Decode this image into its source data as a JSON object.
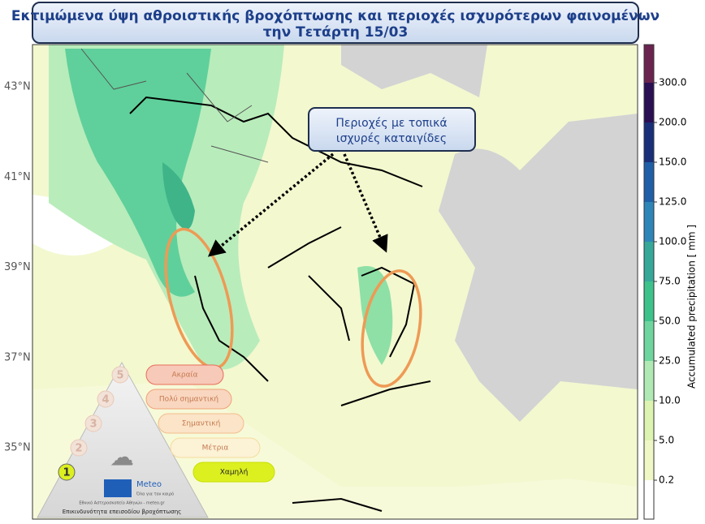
{
  "header": {
    "title": [
      "Εκτιμώμενα ύψη αθροιστικής βροχόπτωσης και περιοχές ισχυρότερων φαινομένων",
      "την Τετάρτη 15/03"
    ]
  },
  "callout": {
    "lines": [
      "Περιοχές με τοπικά",
      "ισχυρές καταιγίδες"
    ]
  },
  "latitude_labels": [
    "43°N",
    "41°N",
    "39°N",
    "37°N",
    "35°N"
  ],
  "colorbar": {
    "label": "Accumulated precipitation [ mm ]",
    "ticks": [
      "0.2",
      "5.0",
      "10.0",
      "25.0",
      "50.0",
      "75.0",
      "100.0",
      "125.0",
      "150.0",
      "200.0",
      "300.0"
    ]
  },
  "risk_legend": {
    "levels": [
      {
        "number": "5",
        "label": "Ακραία"
      },
      {
        "number": "4",
        "label": "Πολύ σημαντική"
      },
      {
        "number": "3",
        "label": "Σημαντική"
      },
      {
        "number": "2",
        "label": "Μέτρια"
      },
      {
        "number": "1",
        "label": "Χαμηλή"
      }
    ],
    "logo": "Meteo",
    "slogan": "Όλα για τον καιρό",
    "source": "Εθνικό Αστεροσκοπείο Αθηνών - meteo.gr",
    "caption": "Επικινδυνότητα επεισοδίου βροχόπτωσης"
  }
}
